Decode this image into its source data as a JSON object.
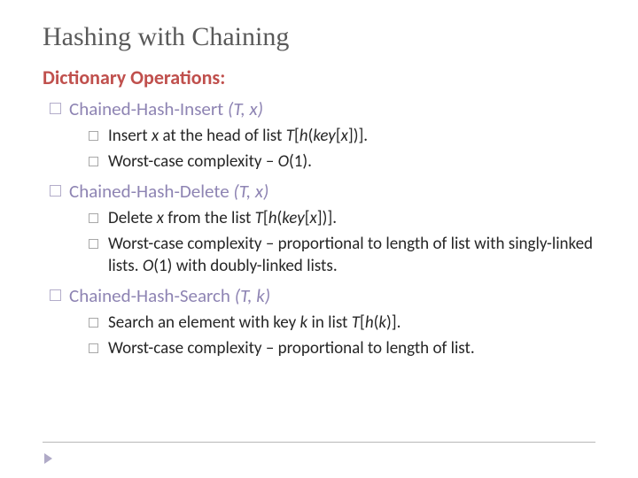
{
  "title": "Hashing with Chaining",
  "subtitle": "Dictionary Operations:",
  "ops": [
    {
      "name": "Chained-Hash-Insert ",
      "params": "(T, x)",
      "subs": [
        {
          "pre": "Insert ",
          "it1": "x",
          "mid1": " at the head of list ",
          "it2": "T",
          "mid2": "[",
          "it3": "h",
          "mid3": "(",
          "it4": "key",
          "mid4": "[",
          "it5": "x",
          "post": "])]."
        },
        {
          "pre": "Worst-case complexity – ",
          "it1": "O",
          "post": "(1)."
        }
      ]
    },
    {
      "name": "Chained-Hash-Delete ",
      "params": "(T, x)",
      "subs": [
        {
          "pre": "Delete ",
          "it1": "x",
          "mid1": " from the list ",
          "it2": "T",
          "mid2": "[",
          "it3": "h",
          "mid3": "(",
          "it4": "key",
          "mid4": "[",
          "it5": "x",
          "post": "])]."
        },
        {
          "pre": "Worst-case complexity – proportional to length of list with singly-linked lists. ",
          "it1": "O",
          "post": "(1) with doubly-linked lists."
        }
      ]
    },
    {
      "name": "Chained-Hash-Search ",
      "params": "(T, k)",
      "subs": [
        {
          "pre": "Search an element with key ",
          "it1": "k",
          "mid1": " in list ",
          "it2": "T",
          "mid2": "[",
          "it3": "h",
          "mid3": "(",
          "it4": "k",
          "post": ")]."
        },
        {
          "pre": "Worst-case complexity – proportional to length of list.",
          "post": ""
        }
      ]
    }
  ]
}
